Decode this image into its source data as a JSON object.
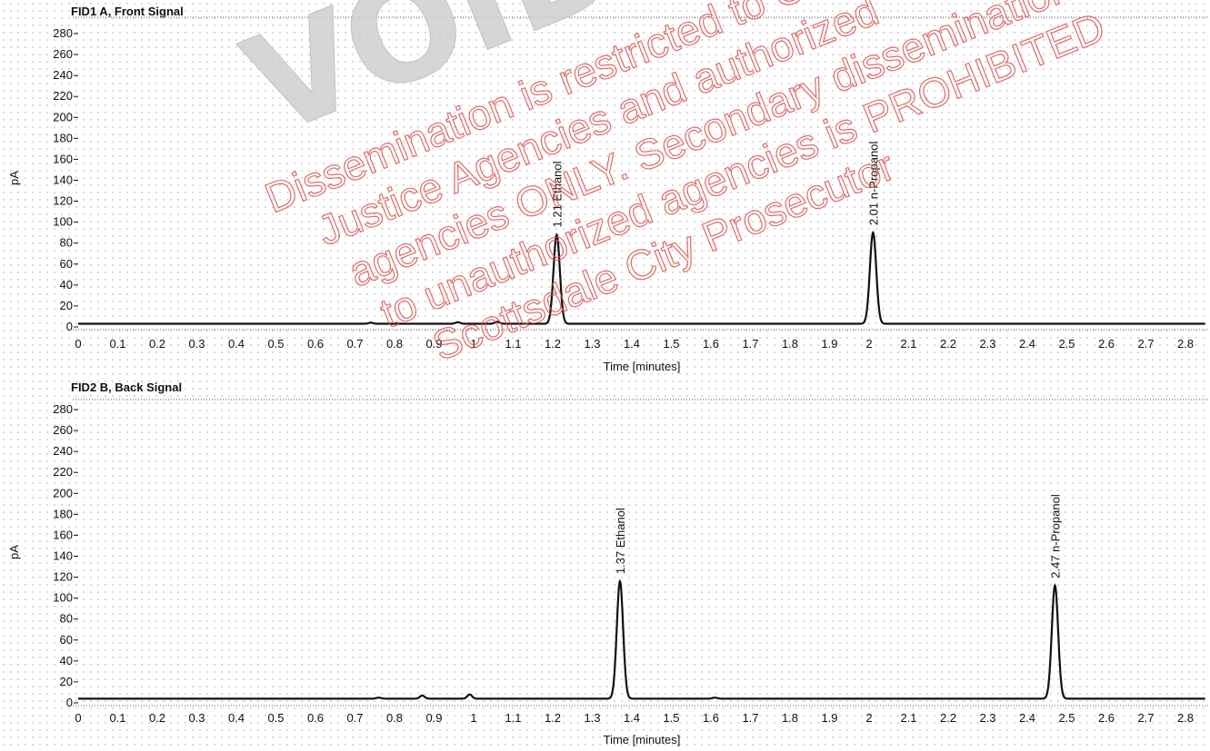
{
  "chart_data": [
    {
      "type": "line",
      "title": "FID1 A, Front Signal",
      "xlabel": "Time [minutes]",
      "ylabel": "pA",
      "xlim": [
        0,
        2.85
      ],
      "ylim": [
        0,
        290
      ],
      "x_ticks": [
        "0",
        "0.1",
        "0.2",
        "0.3",
        "0.4",
        "0.5",
        "0.6",
        "0.7",
        "0.8",
        "0.9",
        "1",
        "1.1",
        "1.2",
        "1.3",
        "1.4",
        "1.5",
        "1.6",
        "1.7",
        "1.8",
        "1.9",
        "2",
        "2.1",
        "2.2",
        "2.3",
        "2.4",
        "2.5",
        "2.6",
        "2.7",
        "2.8"
      ],
      "y_ticks": [
        "0",
        "20",
        "40",
        "60",
        "80",
        "100",
        "120",
        "140",
        "160",
        "180",
        "200",
        "220",
        "240",
        "260",
        "280"
      ],
      "baseline": 3,
      "minor_peaks": [
        [
          0.74,
          1
        ],
        [
          0.96,
          1.5
        ],
        [
          1.06,
          2
        ]
      ],
      "peaks": [
        {
          "rt": 1.21,
          "height": 85,
          "label_rt": "1.21",
          "label_name": "Ethanol"
        },
        {
          "rt": 2.01,
          "height": 87,
          "label_rt": "2.01",
          "label_name": "n-Propanol"
        }
      ]
    },
    {
      "type": "line",
      "title": "FID2 B, Back Signal",
      "xlabel": "Time [minutes]",
      "ylabel": "pA",
      "xlim": [
        0,
        2.85
      ],
      "ylim": [
        0,
        290
      ],
      "x_ticks": [
        "0",
        "0.1",
        "0.2",
        "0.3",
        "0.4",
        "0.5",
        "0.6",
        "0.7",
        "0.8",
        "0.9",
        "1",
        "1.1",
        "1.2",
        "1.3",
        "1.4",
        "1.5",
        "1.6",
        "1.7",
        "1.8",
        "1.9",
        "2",
        "2.1",
        "2.2",
        "2.3",
        "2.4",
        "2.5",
        "2.6",
        "2.7",
        "2.8"
      ],
      "y_ticks": [
        "0",
        "20",
        "40",
        "60",
        "80",
        "100",
        "120",
        "140",
        "160",
        "180",
        "200",
        "220",
        "240",
        "260",
        "280"
      ],
      "baseline": 4,
      "minor_peaks": [
        [
          0.76,
          1
        ],
        [
          0.87,
          3
        ],
        [
          0.99,
          4
        ],
        [
          1.61,
          1
        ]
      ],
      "peaks": [
        {
          "rt": 1.37,
          "height": 112,
          "label_rt": "1.37",
          "label_name": "Ethanol"
        },
        {
          "rt": 2.47,
          "height": 108,
          "label_rt": "2.47",
          "label_name": "n-Propanol"
        }
      ]
    }
  ],
  "watermark": {
    "stamp": "VOID",
    "lines": [
      "Dissemination is restricted to Criminal",
      "Justice Agencies and authorized",
      "agencies ONLY. Secondary dissemination",
      "to unauthorized agencies is PROHIBITED",
      "Scottsdale City Prosecutor"
    ]
  }
}
